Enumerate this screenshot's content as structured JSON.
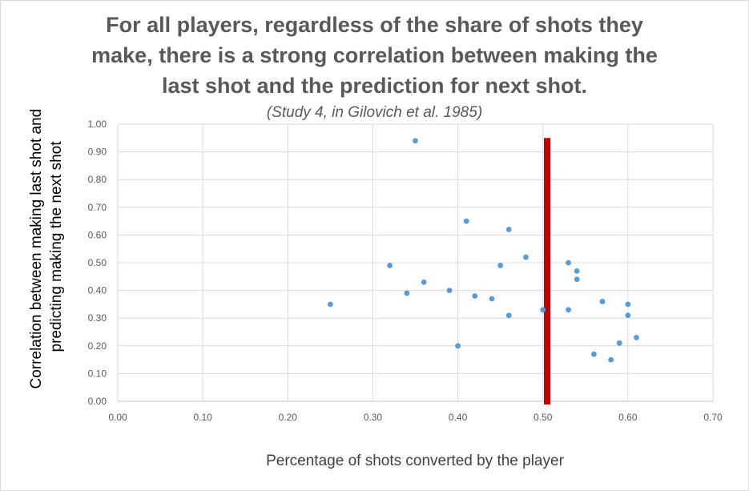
{
  "chart_data": {
    "type": "scatter",
    "title_lines": [
      "For all players, regardless of the share of shots they",
      "make, there is a strong correlation between making the",
      "last shot and the prediction for next shot."
    ],
    "subtitle": "(Study 4, in Gilovich et al. 1985)",
    "xlabel": "Percentage of shots converted by the player",
    "ylabel_lines": [
      "Correlation between making last shot and",
      "predicting making the next shot"
    ],
    "xlim": [
      0,
      0.7
    ],
    "ylim": [
      0,
      1.0
    ],
    "x_ticks": [
      "0.00",
      "0.10",
      "0.20",
      "0.30",
      "0.40",
      "0.50",
      "0.60",
      "0.70"
    ],
    "y_ticks": [
      "0.00",
      "0.10",
      "0.20",
      "0.30",
      "0.40",
      "0.50",
      "0.60",
      "0.70",
      "0.80",
      "0.90",
      "1.00"
    ],
    "grid": true,
    "marker_color": "#5b9bd5",
    "reference_bar": {
      "x": 0.505,
      "y_from": 0.0,
      "y_to": 0.95,
      "color": "#c00000"
    },
    "points": [
      {
        "x": 0.25,
        "y": 0.35
      },
      {
        "x": 0.32,
        "y": 0.49
      },
      {
        "x": 0.34,
        "y": 0.39
      },
      {
        "x": 0.35,
        "y": 0.94
      },
      {
        "x": 0.36,
        "y": 0.43
      },
      {
        "x": 0.39,
        "y": 0.4
      },
      {
        "x": 0.4,
        "y": 0.2
      },
      {
        "x": 0.41,
        "y": 0.65
      },
      {
        "x": 0.42,
        "y": 0.38
      },
      {
        "x": 0.44,
        "y": 0.37
      },
      {
        "x": 0.45,
        "y": 0.49
      },
      {
        "x": 0.46,
        "y": 0.62
      },
      {
        "x": 0.46,
        "y": 0.31
      },
      {
        "x": 0.48,
        "y": 0.52
      },
      {
        "x": 0.5,
        "y": 0.33
      },
      {
        "x": 0.53,
        "y": 0.5
      },
      {
        "x": 0.53,
        "y": 0.33
      },
      {
        "x": 0.54,
        "y": 0.47
      },
      {
        "x": 0.54,
        "y": 0.44
      },
      {
        "x": 0.56,
        "y": 0.17
      },
      {
        "x": 0.57,
        "y": 0.36
      },
      {
        "x": 0.58,
        "y": 0.15
      },
      {
        "x": 0.59,
        "y": 0.21
      },
      {
        "x": 0.6,
        "y": 0.35
      },
      {
        "x": 0.6,
        "y": 0.31
      },
      {
        "x": 0.61,
        "y": 0.23
      }
    ]
  }
}
